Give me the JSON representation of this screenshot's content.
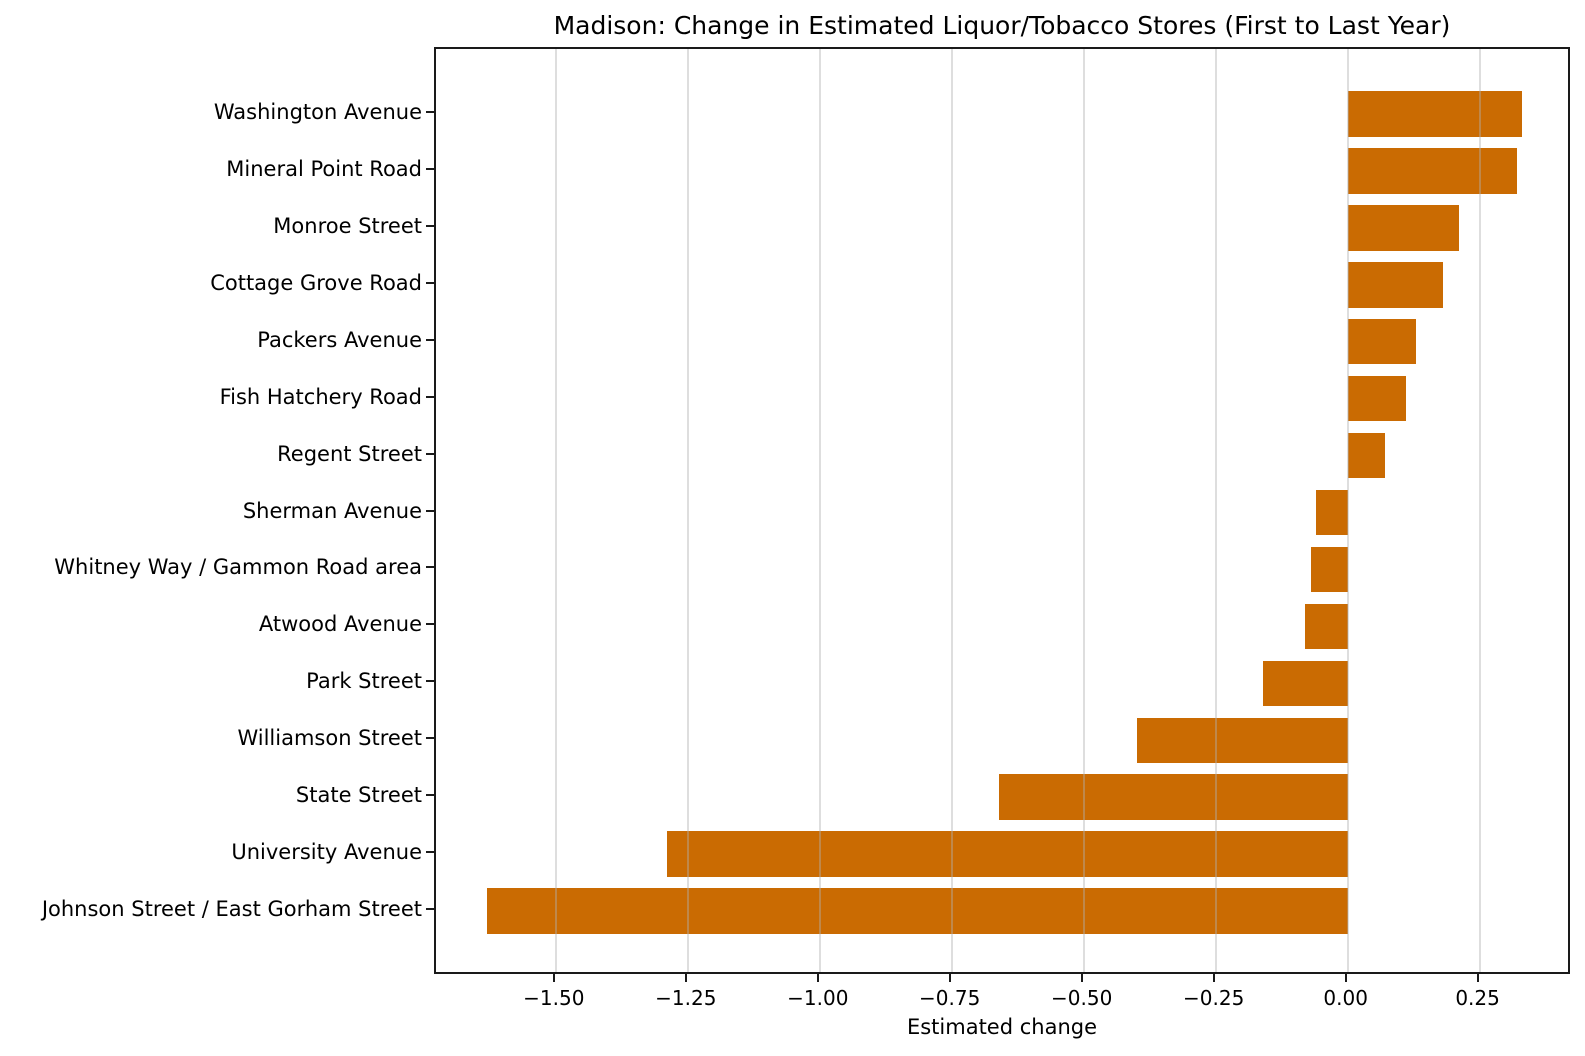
{
  "chart_data": {
    "type": "bar",
    "orientation": "horizontal",
    "title": "Madison: Change in Estimated Liquor/Tobacco Stores (First to Last Year)",
    "xlabel": "Estimated change",
    "ylabel": "",
    "categories": [
      "Washington Avenue",
      "Mineral Point Road",
      "Monroe Street",
      "Cottage Grove Road",
      "Packers Avenue",
      "Fish Hatchery Road",
      "Regent Street",
      "Sherman Avenue",
      "Whitney Way / Gammon Road area",
      "Atwood Avenue",
      "Park Street",
      "Williamson Street",
      "State Street",
      "University Avenue",
      "Johnson Street / East Gorham Street"
    ],
    "values": [
      0.33,
      0.32,
      0.21,
      0.18,
      0.13,
      0.11,
      0.07,
      -0.06,
      -0.07,
      -0.08,
      -0.16,
      -0.4,
      -0.66,
      -1.29,
      -1.63
    ],
    "xticks": [
      -1.5,
      -1.25,
      -1.0,
      -0.75,
      -0.5,
      -0.25,
      0.0,
      0.25
    ],
    "xtick_labels": [
      "−1.50",
      "−1.25",
      "−1.00",
      "−0.75",
      "−0.50",
      "−0.25",
      "0.00",
      "0.25"
    ],
    "xlim": [
      -1.727,
      0.425
    ],
    "grid": "vertical",
    "grid_above_bars": true,
    "legend": "none",
    "bar_color": "#ca6b02",
    "spine_color": "#1a1a1a",
    "text_color": "#000000",
    "background": "#ffffff"
  }
}
